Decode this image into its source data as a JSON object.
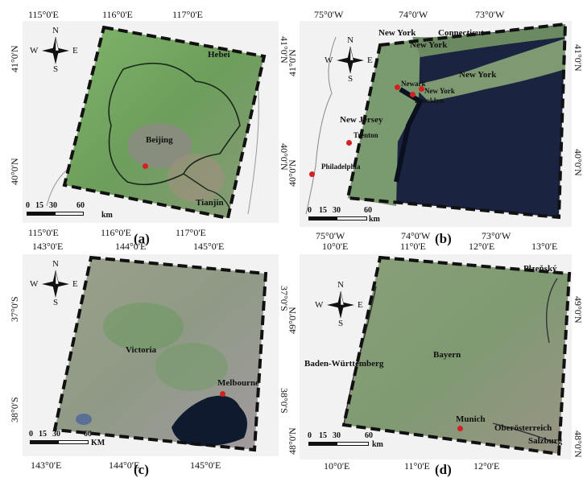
{
  "panels": {
    "a": {
      "caption": "(a)",
      "top_ticks": [
        "115°0'E",
        "116°0'E",
        "117°0'E"
      ],
      "bottom_ticks": [
        "115°0'E",
        "116°0'E",
        "117°0'E"
      ],
      "left_ticks": [
        "41°0'N",
        "40°0'N"
      ],
      "right_ticks": [
        "41°0'N",
        "40°0'N"
      ],
      "labels": {
        "hebei": "Hebei",
        "beijing": "Beijing",
        "tianjin": "Tianjin"
      },
      "scale": {
        "ticks": [
          "0",
          "15",
          "30",
          "60"
        ],
        "unit": "km"
      }
    },
    "b": {
      "caption": "(b)",
      "top_ticks": [
        "75°0'W",
        "74°0'W",
        "73°0'W"
      ],
      "bottom_ticks": [
        "75°0'W",
        "74°0'W",
        "73°0'W"
      ],
      "left_ticks": [
        "41°0'N",
        "40°0'N"
      ],
      "right_ticks": [
        "41°0'N",
        "40°0'N"
      ],
      "labels": {
        "new_york_state": "New York",
        "connecticut": "Connecticut",
        "new_york_2": "New York",
        "new_york_li": "New York",
        "newark": "Newark",
        "new_york_city": "New York",
        "brooklyn": "Brooklyn",
        "new_jersey": "New Jersey",
        "trenton": "Trenton",
        "philadelphia": "Philadelphia"
      },
      "scale": {
        "ticks": [
          "0",
          "15",
          "30",
          "60"
        ],
        "unit": "km"
      }
    },
    "c": {
      "caption": "(c)",
      "top_ticks": [
        "143°0'E",
        "144°0'E",
        "145°0'E"
      ],
      "bottom_ticks": [
        "143°0'E",
        "144°0'E",
        "145°0'E"
      ],
      "left_ticks": [
        "37°0'S",
        "38°0'S"
      ],
      "right_ticks": [
        "37°0'S",
        "38°0'S"
      ],
      "labels": {
        "victoria": "Victoria",
        "melbourne": "Melbourne"
      },
      "scale": {
        "ticks": [
          "0",
          "15",
          "30",
          "60"
        ],
        "unit": "KM"
      }
    },
    "d": {
      "caption": "(d)",
      "top_ticks": [
        "10°0'E",
        "11°0'E",
        "12°0'E",
        "13°0'E"
      ],
      "bottom_ticks": [
        "10°0'E",
        "11°0'E",
        "12°0'E"
      ],
      "left_ticks": [
        "49°0'N",
        "48°0'N"
      ],
      "right_ticks": [
        "49°0'N",
        "48°0'N"
      ],
      "labels": {
        "plzensky": "Plzeňský",
        "baden": "Baden-Württemberg",
        "bayern": "Bayern",
        "munich": "Munich",
        "oberosterreich": "Oberösterreich",
        "salzburg": "Salzburg"
      },
      "scale": {
        "ticks": [
          "0",
          "15",
          "30",
          "60"
        ],
        "unit": "km"
      }
    }
  },
  "compass": {
    "n": "N",
    "s": "S",
    "e": "E",
    "w": "W"
  },
  "colors": {
    "vegetation": "#6fa35a",
    "water": "#0f1a2e",
    "urban": "#9a8f8a",
    "city_marker": "#d42020",
    "frame": "#111111"
  }
}
